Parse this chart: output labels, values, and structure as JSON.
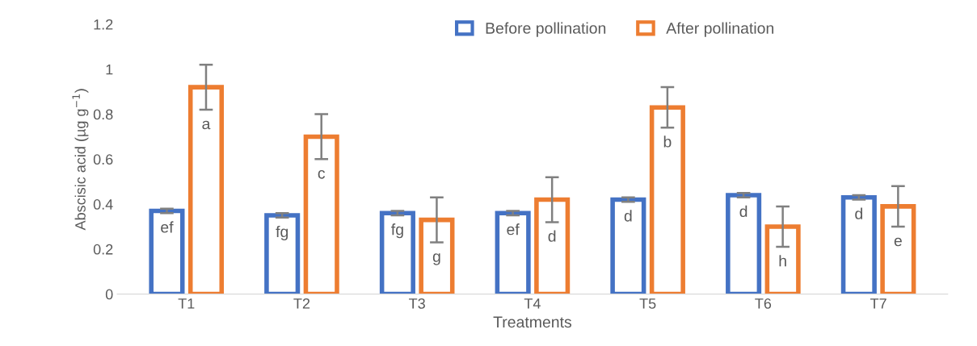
{
  "chart_data": {
    "type": "bar",
    "xlabel": "Treatments",
    "ylabel": "Abscisic acid (µg g$^{−1}$)",
    "categories": [
      "T1",
      "T2",
      "T3",
      "T4",
      "T5",
      "T6",
      "T7"
    ],
    "series": [
      {
        "name": "Before pollination",
        "color": "#4472c4",
        "values": [
          0.37,
          0.35,
          0.36,
          0.36,
          0.42,
          0.44,
          0.43
        ],
        "errors": [
          0.01,
          0.01,
          0.01,
          0.01,
          0.01,
          0.01,
          0.01
        ],
        "value_labels": [
          "ef",
          "fg",
          "fg",
          "ef",
          "d",
          "d",
          "d"
        ]
      },
      {
        "name": "After pollination",
        "color": "#ed7d31",
        "values": [
          0.92,
          0.7,
          0.33,
          0.42,
          0.83,
          0.3,
          0.39
        ],
        "errors": [
          0.1,
          0.1,
          0.1,
          0.1,
          0.09,
          0.09,
          0.09
        ],
        "value_labels": [
          "a",
          "c",
          "g",
          "d",
          "b",
          "h",
          "e"
        ]
      }
    ],
    "ylim": [
      0,
      1.2
    ],
    "yticks": [
      0,
      0.2,
      0.4,
      0.6,
      0.8,
      1,
      1.2
    ],
    "grid": false,
    "legend": "top"
  }
}
